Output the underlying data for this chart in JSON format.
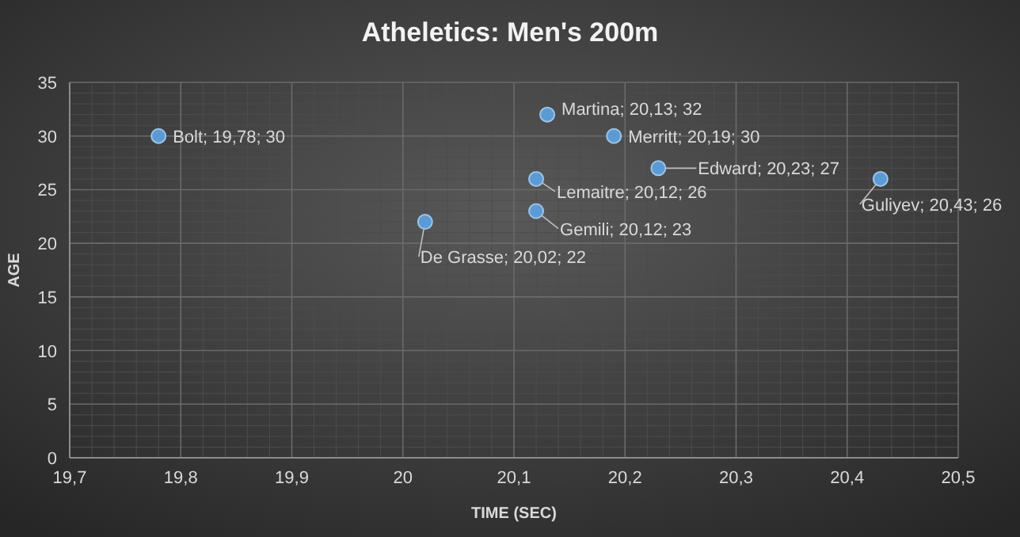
{
  "chart_data": {
    "type": "scatter",
    "title": "Atheletics:  Men's 200m",
    "xlabel": "TIME (SEC)",
    "ylabel": "AGE",
    "x": [
      19.78,
      20.13,
      20.19,
      20.12,
      20.23,
      20.43,
      20.12,
      20.02
    ],
    "values": [
      30,
      32,
      30,
      26,
      27,
      26,
      23,
      22
    ],
    "value_labels": [
      "Bolt; 19,78; 30",
      "Martina; 20,13; 32",
      "Merritt; 20,19; 30",
      "Lemaitre; 20,12; 26",
      "Edward; 20,23; 27",
      "Guliyev; 20,43; 26",
      "Gemili; 20,12; 23",
      "De Grasse; 20,02; 22"
    ],
    "color": "#5b9bd5",
    "marker": "circle",
    "xlim": [
      19.7,
      20.5
    ],
    "xticks": [
      {
        "value": 19.7,
        "label": "19,7"
      },
      {
        "value": 19.8,
        "label": "19,8"
      },
      {
        "value": 19.9,
        "label": "19,9"
      },
      {
        "value": 20,
        "label": "20"
      },
      {
        "value": 20.1,
        "label": "20,1"
      },
      {
        "value": 20.2,
        "label": "20,2"
      },
      {
        "value": 20.3,
        "label": "20,3"
      },
      {
        "value": 20.4,
        "label": "20,4"
      },
      {
        "value": 20.5,
        "label": "20,5"
      }
    ],
    "ylim": [
      0,
      35
    ],
    "yticks": [
      0,
      5,
      10,
      15,
      20,
      25,
      30,
      35
    ],
    "grid": true
  }
}
